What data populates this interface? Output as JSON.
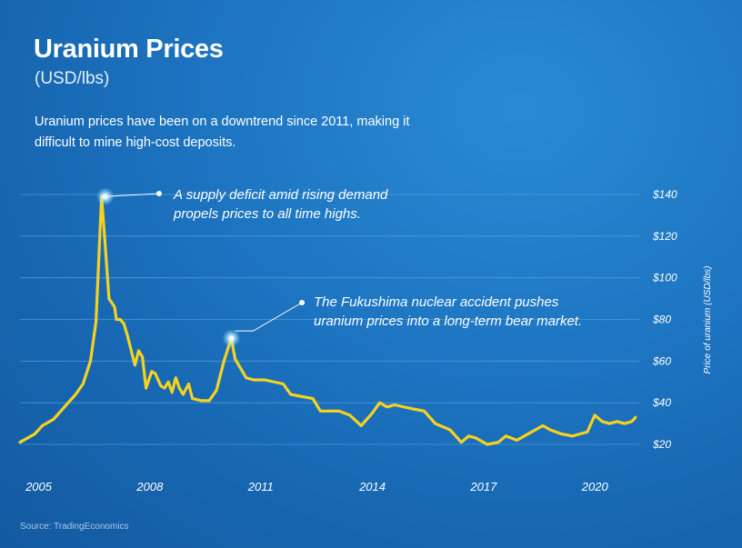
{
  "header": {
    "title": "Uranium Prices",
    "subtitle": "(USD/lbs)",
    "description": "Uranium prices have been on a downtrend since 2011, making it difficult to mine high-cost deposits."
  },
  "annotations": [
    {
      "text": "A supply deficit amid rising demand propels prices to all time highs.",
      "x": 2007.2,
      "y": 139
    },
    {
      "text": "The Fukushima nuclear accident pushes uranium prices into a long-term bear market.",
      "x": 2010.6,
      "y": 71
    }
  ],
  "source": "Source: TradingEconomics",
  "colors": {
    "line": "#f5d21f",
    "grid": "#5ea6e3",
    "background": "#1b6fbb"
  },
  "chart_data": {
    "type": "line",
    "title": "Uranium Prices",
    "ylabel": "Price of uranium (USD/lbs)",
    "xlim": [
      2004.9,
      2021.6
    ],
    "ylim": [
      20,
      140
    ],
    "y_ticks": [
      20,
      40,
      60,
      80,
      100,
      120,
      140
    ],
    "y_tick_labels": [
      "$20",
      "$40",
      "$60",
      "$80",
      "$100",
      "$120",
      "$140"
    ],
    "x_ticks": [
      2005,
      2008,
      2011,
      2014,
      2017,
      2020
    ],
    "x_tick_labels": [
      "2005",
      "2008",
      "2011",
      "2014",
      "2017",
      "2020"
    ],
    "grid": true,
    "series": [
      {
        "x": [
          2004.9,
          2005.3,
          2005.5,
          2005.8,
          2006.1,
          2006.4,
          2006.6,
          2006.8,
          2006.95,
          2007.1,
          2007.2,
          2007.3,
          2007.45,
          2007.5,
          2007.6,
          2007.7,
          2007.8,
          2008.0,
          2008.1,
          2008.2,
          2008.3,
          2008.45,
          2008.55,
          2008.7,
          2008.8,
          2008.9,
          2009.0,
          2009.1,
          2009.2,
          2009.3,
          2009.45,
          2009.55,
          2009.8,
          2010.0,
          2010.2,
          2010.4,
          2010.6,
          2010.7,
          2010.9,
          2011.0,
          2011.2,
          2011.5,
          2012.0,
          2012.2,
          2012.5,
          2012.8,
          2013.0,
          2013.3,
          2013.5,
          2013.8,
          2014.1,
          2014.4,
          2014.6,
          2014.8,
          2015.0,
          2015.5,
          2015.8,
          2016.1,
          2016.5,
          2016.8,
          2017.0,
          2017.2,
          2017.5,
          2017.8,
          2018.0,
          2018.3,
          2018.5,
          2018.8,
          2019.0,
          2019.2,
          2019.5,
          2019.8,
          2020.0,
          2020.2,
          2020.4,
          2020.6,
          2020.8,
          2021.0,
          2021.2,
          2021.4,
          2021.5
        ],
        "y": [
          21,
          25,
          29,
          32,
          38,
          44,
          49,
          60,
          79,
          139,
          115,
          90,
          86,
          80,
          80,
          78,
          72,
          58,
          65,
          62,
          47,
          55,
          54,
          48,
          47,
          50,
          45,
          52,
          47,
          44,
          49,
          42,
          41,
          41,
          46,
          60,
          71,
          61,
          55,
          52,
          51,
          51,
          49,
          44,
          43,
          42,
          36,
          36,
          36,
          34,
          29,
          35,
          40,
          38,
          39,
          37,
          36,
          30,
          27,
          21,
          24,
          23,
          20,
          21,
          24,
          22,
          24,
          27,
          29,
          27,
          25,
          24,
          25,
          26,
          34,
          31,
          30,
          31,
          30,
          31,
          33
        ]
      }
    ]
  }
}
